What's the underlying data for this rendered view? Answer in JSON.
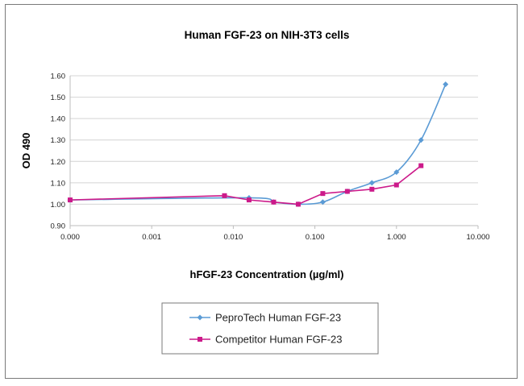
{
  "chart_data": {
    "type": "line",
    "title": "Human FGF-23 on NIH-3T3 cells",
    "xlabel": "hFGF-23 Concentration (µg/ml)",
    "ylabel": "OD 490",
    "x_scale": "log",
    "xlim": [
      0.0001,
      10
    ],
    "ylim": [
      0.9,
      1.6
    ],
    "x_ticks": [
      0.0001,
      0.001,
      0.01,
      0.1,
      1,
      10
    ],
    "x_tick_labels": [
      "0.000",
      "0.001",
      "0.010",
      "0.100",
      "1.000",
      "10.000"
    ],
    "y_ticks": [
      0.9,
      1.0,
      1.1,
      1.2,
      1.3,
      1.4,
      1.5,
      1.6
    ],
    "y_tick_labels": [
      "0.90",
      "1.00",
      "1.10",
      "1.20",
      "1.30",
      "1.40",
      "1.50",
      "1.60"
    ],
    "grid": "horizontal",
    "legend_position": "bottom",
    "series": [
      {
        "name": "PeproTech Human FGF-23",
        "color": "#5b9bd5",
        "marker": "diamond",
        "smooth": true,
        "x": [
          0.0001,
          0.0156,
          0.03125,
          0.0625,
          0.125,
          0.25,
          0.5,
          1,
          2,
          4
        ],
        "y": [
          1.02,
          1.03,
          1.01,
          1.0,
          1.01,
          1.06,
          1.1,
          1.15,
          1.3,
          1.56
        ]
      },
      {
        "name": "Competitor Human FGF-23",
        "color": "#cc1a8a",
        "marker": "square",
        "smooth": false,
        "x": [
          0.0001,
          0.0078,
          0.0156,
          0.03125,
          0.0625,
          0.125,
          0.25,
          0.5,
          1,
          2
        ],
        "y": [
          1.02,
          1.04,
          1.02,
          1.01,
          1.0,
          1.05,
          1.06,
          1.07,
          1.09,
          1.18
        ]
      }
    ]
  }
}
